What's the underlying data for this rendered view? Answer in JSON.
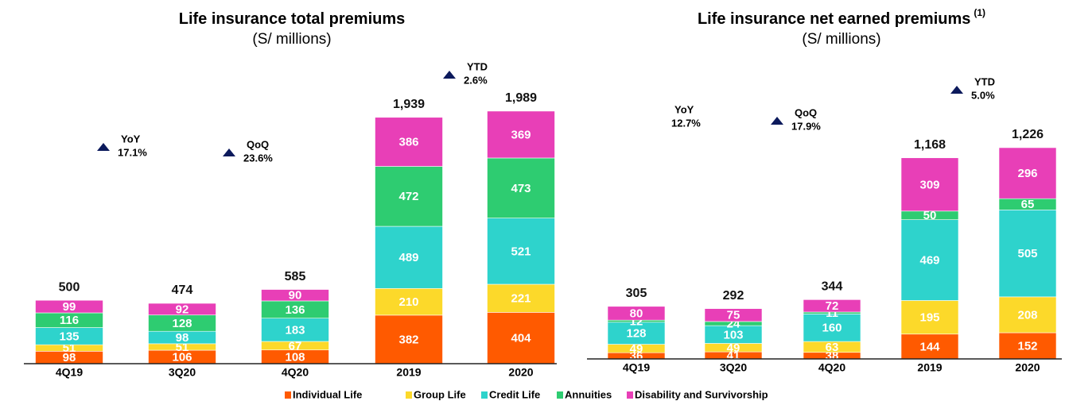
{
  "chart_data": [
    {
      "type": "bar",
      "stacked": true,
      "title": "Life insurance total premiums",
      "subtitle": "(S/ millions)",
      "categories": [
        "4Q19",
        "3Q20",
        "4Q20",
        "2019",
        "2020"
      ],
      "series": [
        {
          "name": "Individual Life",
          "color": "#ff5a00",
          "values": [
            98,
            106,
            108,
            382,
            404
          ]
        },
        {
          "name": "Group Life",
          "color": "#fcd92a",
          "values": [
            51,
            51,
            67,
            210,
            221
          ]
        },
        {
          "name": "Credit Life",
          "color": "#2ed3cc",
          "values": [
            135,
            98,
            183,
            489,
            521
          ]
        },
        {
          "name": "Annuities",
          "color": "#2ecc71",
          "values": [
            116,
            128,
            136,
            472,
            473
          ]
        },
        {
          "name": "Disability and Survivorship",
          "color": "#e83fb7",
          "values": [
            99,
            92,
            90,
            386,
            369
          ]
        }
      ],
      "totals": [
        500,
        474,
        585,
        1939,
        1989
      ],
      "total_labels": [
        "500",
        "474",
        "585",
        "1,939",
        "1,989"
      ],
      "annotations": [
        {
          "label": "YoY",
          "text": "17.1%"
        },
        {
          "label": "QoQ",
          "text": "23.6%"
        },
        {
          "label": "YTD",
          "text": "2.6%"
        }
      ]
    },
    {
      "type": "bar",
      "stacked": true,
      "title": "Life insurance net earned premiums",
      "title_note": "(1)",
      "subtitle": "(S/ millions)",
      "categories": [
        "4Q19",
        "3Q20",
        "4Q20",
        "2019",
        "2020"
      ],
      "series": [
        {
          "name": "Individual Life",
          "color": "#ff5a00",
          "values": [
            36,
            41,
            38,
            144,
            152
          ]
        },
        {
          "name": "Group Life",
          "color": "#fcd92a",
          "values": [
            49,
            49,
            63,
            195,
            208
          ]
        },
        {
          "name": "Credit Life",
          "color": "#2ed3cc",
          "values": [
            128,
            103,
            160,
            469,
            505
          ]
        },
        {
          "name": "Annuities",
          "color": "#2ecc71",
          "values": [
            12,
            24,
            11,
            50,
            65
          ]
        },
        {
          "name": "Disability and Survivorship",
          "color": "#e83fb7",
          "values": [
            80,
            75,
            72,
            309,
            296
          ]
        }
      ],
      "totals": [
        305,
        292,
        344,
        1168,
        1226
      ],
      "total_labels": [
        "305",
        "292",
        "344",
        "1,168",
        "1,226"
      ],
      "annotations": [
        {
          "label": "YoY",
          "text": "12.7%"
        },
        {
          "label": "QoQ",
          "text": "17.9%"
        },
        {
          "label": "YTD",
          "text": "5.0%"
        }
      ]
    }
  ]
}
